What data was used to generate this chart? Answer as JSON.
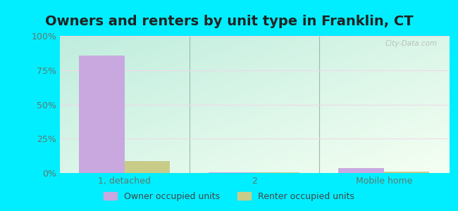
{
  "title": "Owners and renters by unit type in Franklin, CT",
  "categories": [
    "1, detached",
    "2",
    "Mobile home"
  ],
  "owner_values": [
    85.5,
    0.5,
    3.5
  ],
  "renter_values": [
    8.5,
    0.5,
    0.8
  ],
  "owner_color": "#c9a8e0",
  "renter_color": "#c8cc88",
  "bar_width": 0.35,
  "ylim": [
    0,
    100
  ],
  "yticks": [
    0,
    25,
    50,
    75,
    100
  ],
  "ytick_labels": [
    "0%",
    "25%",
    "50%",
    "75%",
    "100%"
  ],
  "outer_bg": "#00eeff",
  "title_fontsize": 14,
  "tick_fontsize": 9,
  "legend_fontsize": 9,
  "watermark": "City-Data.com"
}
